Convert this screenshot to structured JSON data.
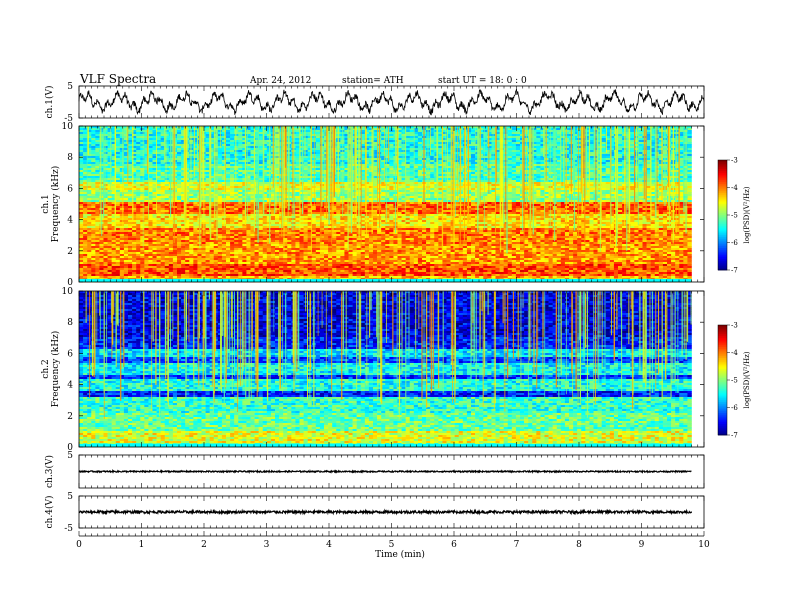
{
  "header": {
    "title": "VLF  Spectra",
    "date": "Apr. 24,  2012",
    "station": "station= ATH",
    "start": "start  UT  =    18: 0   : 0"
  },
  "chart_data": [
    {
      "type": "line",
      "name": "ch1-waveform",
      "ylabel": "ch.1(V)",
      "ylim": [
        -5,
        5
      ],
      "yticks": [
        "5",
        "-5"
      ],
      "xlim": [
        0,
        10
      ],
      "description_values": {
        "mean": 0,
        "swing": 3.5
      }
    },
    {
      "type": "heatmap",
      "name": "ch1-spectrogram",
      "ylabel": [
        "ch.1",
        "Frequency  (kHz)"
      ],
      "ylim": [
        0,
        10
      ],
      "yticks": [
        "0",
        "2",
        "4",
        "6",
        "8",
        "10"
      ],
      "xlim": [
        0,
        9.8
      ],
      "colorbar": {
        "label": "log(PSD)(V²/Hz)",
        "range": [
          -7,
          -3
        ],
        "ticks": [
          "-3",
          "-4",
          "-5",
          "-6",
          "-7"
        ]
      },
      "band_levels": [
        {
          "f_from": 0,
          "f_to": 0.4,
          "level": -4.2
        },
        {
          "f_from": 0.4,
          "f_to": 1.2,
          "level": -3.8
        },
        {
          "f_from": 1.2,
          "f_to": 2.4,
          "level": -4.1
        },
        {
          "f_from": 2.4,
          "f_to": 3.4,
          "level": -4.0
        },
        {
          "f_from": 3.4,
          "f_to": 4.4,
          "level": -4.4
        },
        {
          "f_from": 4.4,
          "f_to": 5.1,
          "level": -3.9
        },
        {
          "f_from": 5.1,
          "f_to": 5.9,
          "level": -4.9
        },
        {
          "f_from": 5.9,
          "f_to": 6.4,
          "level": -4.6
        },
        {
          "f_from": 6.4,
          "f_to": 7.6,
          "level": -5.2
        },
        {
          "f_from": 7.6,
          "f_to": 10,
          "level": -5.4
        }
      ]
    },
    {
      "type": "heatmap",
      "name": "ch2-spectrogram",
      "ylabel": [
        "ch.2",
        "Frequency  (kHz)"
      ],
      "ylim": [
        0,
        10
      ],
      "yticks": [
        "0",
        "2",
        "4",
        "6",
        "8",
        "10"
      ],
      "xlim": [
        0,
        9.8
      ],
      "colorbar": {
        "label": "log(PSD)(V²/Hz)",
        "range": [
          -7,
          -3
        ],
        "ticks": [
          "-3",
          "-4",
          "-5",
          "-6",
          "-7"
        ]
      },
      "band_levels": [
        {
          "f_from": 0,
          "f_to": 0.3,
          "level": -5.0
        },
        {
          "f_from": 0.3,
          "f_to": 1.0,
          "level": -4.6
        },
        {
          "f_from": 1.0,
          "f_to": 2.2,
          "level": -5.1
        },
        {
          "f_from": 2.2,
          "f_to": 3.2,
          "level": -5.3
        },
        {
          "f_from": 3.2,
          "f_to": 3.6,
          "level": -6.4
        },
        {
          "f_from": 3.6,
          "f_to": 4.3,
          "level": -5.4
        },
        {
          "f_from": 4.3,
          "f_to": 4.6,
          "level": -6.3
        },
        {
          "f_from": 4.6,
          "f_to": 5.4,
          "level": -5.5
        },
        {
          "f_from": 5.4,
          "f_to": 5.8,
          "level": -6.2
        },
        {
          "f_from": 5.8,
          "f_to": 6.3,
          "level": -5.6
        },
        {
          "f_from": 6.3,
          "f_to": 7.0,
          "level": -6.4
        },
        {
          "f_from": 7.0,
          "f_to": 10,
          "level": -6.6
        }
      ]
    },
    {
      "type": "line",
      "name": "ch3-waveform",
      "ylabel": "ch.3(V)",
      "ylim": [
        -5,
        5
      ],
      "yticks": [
        "5"
      ],
      "xlim": [
        0,
        9.8
      ],
      "description_values": {
        "mean": 0,
        "swing": 0.2
      }
    },
    {
      "type": "line",
      "name": "ch4-waveform",
      "ylabel": "ch.4(V)",
      "ylim": [
        -5,
        5
      ],
      "yticks": [
        "5",
        "-5"
      ],
      "xlim": [
        0,
        9.8
      ],
      "description_values": {
        "mean": 0,
        "swing": 0.4
      }
    }
  ],
  "xaxis": {
    "label": "Time  (min)",
    "ticks": [
      "0",
      "1",
      "2",
      "3",
      "4",
      "5",
      "6",
      "7",
      "8",
      "9",
      "10"
    ],
    "range": [
      0,
      10
    ]
  }
}
